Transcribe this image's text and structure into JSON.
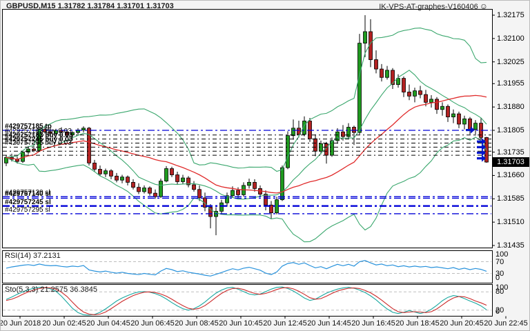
{
  "window": {
    "title": "GBPUSD,M15  1.31782 1.31784 1.31701 1.31703",
    "watermark": "IK-VPS-AT-graphes-V160406",
    "watermark_smiley": "☺"
  },
  "colors": {
    "background": "#f4f4f4",
    "pane_bg": "#ffffff",
    "border": "#000000",
    "bull": "#1f9a1f",
    "bear": "#b22222",
    "wick": "#000000",
    "band": "#3aa76d",
    "ma_fast": "#3aa76d",
    "ma_slow": "#e02a2a",
    "buy_line": "#000000",
    "stop_line": "#0000d8",
    "rsi_line": "#2892dc",
    "sto_main": "#18a8a0",
    "sto_signal": "#cc2a2a",
    "guide_dash": "#bdbdbd",
    "current_tag_bg": "#000000",
    "current_tag_fg": "#ffffff"
  },
  "price_axis": {
    "labels": [
      "1.32175",
      "1.32100",
      "1.32025",
      "1.31955",
      "1.31880",
      "1.31805",
      "1.31735",
      "1.31660",
      "1.31585",
      "1.31510",
      "1.31435"
    ],
    "current": "1.31703"
  },
  "time_axis": {
    "labels": [
      "20 Jun 2018",
      "20 Jun 02:45",
      "20 Jun 04:45",
      "20 Jun 06:45",
      "20 Jun 08:45",
      "20 Jun 10:45",
      "20 Jun 12:45",
      "20 Jun 14:45",
      "20 Jun 16:45",
      "20 Jun 18:45",
      "20 Jun 20:45",
      "20 Jun 22:45"
    ]
  },
  "order_lines": [
    {
      "label": "#429757185 tp",
      "price": 1.31805,
      "type": "tp",
      "width": 1.3,
      "bold": true
    },
    {
      "label": "#429757163 buy 0.03",
      "price": 1.3179,
      "type": "buy",
      "width": 1,
      "bold": false
    },
    {
      "label": "#429757183 buy 0.03",
      "price": 1.31777,
      "type": "buy",
      "width": 1,
      "bold": true
    },
    {
      "label": "#429757245 buy 0.03",
      "price": 1.31764,
      "type": "buy",
      "width": 1,
      "bold": true
    },
    {
      "label": "#429757295 buy 0.03",
      "price": 1.31751,
      "type": "buy",
      "width": 1,
      "bold": false
    },
    {
      "label": "",
      "price": 1.31738,
      "type": "buy",
      "width": 1,
      "bold": false
    },
    {
      "label": "",
      "price": 1.31725,
      "type": "buy",
      "width": 1,
      "bold": false
    },
    {
      "label": "#429757120 sl",
      "price": 1.31592,
      "type": "sl",
      "width": 1.4,
      "bold": false
    },
    {
      "label": "#429757140 sl",
      "price": 1.31587,
      "type": "sl",
      "width": 1.4,
      "bold": true
    },
    {
      "label": "#429757245 sl",
      "price": 1.31562,
      "type": "sl",
      "width": 2.4,
      "bold": true
    },
    {
      "label": "#429757295 sl",
      "price": 1.31537,
      "type": "sl",
      "width": 1.4,
      "bold": false
    }
  ],
  "trade_arrows": [
    {
      "x": 682,
      "price": 1.31806
    },
    {
      "x": 698,
      "price": 1.31769
    },
    {
      "x": 698,
      "price": 1.31751
    },
    {
      "x": 698,
      "price": 1.31733
    },
    {
      "x": 698,
      "price": 1.31715
    }
  ],
  "rsi": {
    "label": "RSI(14) 37.2131",
    "value": 37.2131,
    "levels": [
      100,
      70,
      30,
      0
    ],
    "guides": [
      70,
      30
    ],
    "values": [
      48,
      52,
      55,
      58,
      60,
      57,
      62,
      58,
      56,
      57,
      54,
      52,
      55,
      53,
      57,
      42,
      38,
      35,
      38,
      34,
      31,
      34,
      30,
      28,
      26,
      30,
      27,
      25,
      38,
      47,
      43,
      36,
      39,
      34,
      31,
      28,
      24,
      21,
      27,
      33,
      40,
      46,
      42,
      48,
      51,
      46,
      41,
      31,
      26,
      35,
      55,
      64,
      67,
      61,
      66,
      57,
      49,
      53,
      46,
      54,
      61,
      56,
      61,
      55,
      70,
      74,
      66,
      59,
      62,
      56,
      59,
      53,
      56,
      52,
      55,
      52,
      54,
      50,
      52,
      49,
      46,
      50,
      44,
      48,
      43,
      47,
      44,
      37.2131
    ]
  },
  "stochastic": {
    "label": "Sto(5,3,3) 21.2575 36.3845",
    "main_value": 21.2575,
    "signal_value": 36.3845,
    "levels": [
      100,
      80,
      20,
      0
    ],
    "guides": [
      80,
      20
    ],
    "main": [
      55,
      63,
      72,
      80,
      87,
      92,
      95,
      94,
      90,
      82,
      66,
      46,
      26,
      12,
      5,
      3,
      6,
      13,
      24,
      37,
      50,
      60,
      68,
      75,
      80,
      81,
      79,
      74,
      67,
      57,
      45,
      34,
      25,
      20,
      25,
      34,
      47,
      62,
      76,
      86,
      93,
      95,
      89,
      81,
      73,
      70,
      73,
      81,
      89,
      95,
      96,
      91,
      83,
      72,
      60,
      52,
      56,
      66,
      76,
      83,
      89,
      93,
      95,
      92,
      86,
      78,
      67,
      54,
      38,
      24,
      13,
      9,
      13,
      19,
      14,
      9,
      14,
      23,
      36,
      51,
      62,
      68,
      65,
      58,
      50,
      43,
      34,
      21.2575
    ],
    "signal": [
      52,
      56,
      63,
      72,
      80,
      86,
      91,
      94,
      93,
      89,
      79,
      65,
      46,
      28,
      14,
      7,
      5,
      7,
      14,
      25,
      37,
      49,
      59,
      68,
      74,
      79,
      80,
      78,
      73,
      66,
      56,
      45,
      35,
      26,
      23,
      26,
      35,
      48,
      62,
      75,
      85,
      91,
      92,
      88,
      81,
      75,
      72,
      75,
      81,
      88,
      93,
      94,
      90,
      82,
      72,
      61,
      56,
      58,
      66,
      75,
      83,
      88,
      92,
      93,
      91,
      85,
      77,
      66,
      53,
      39,
      25,
      15,
      12,
      14,
      15,
      14,
      12,
      15,
      24,
      37,
      50,
      60,
      65,
      64,
      58,
      50,
      44,
      36.3845
    ]
  },
  "chart_data": {
    "type": "candlestick",
    "title": "GBPUSD,M15",
    "ohlc_display": [
      "1.31782",
      "1.31784",
      "1.31701",
      "1.31703"
    ],
    "y_range": [
      1.31435,
      1.32175
    ],
    "indicators": {
      "bollinger_period": 20,
      "bollinger_deviation": 2,
      "ma_fast_period": 10,
      "ma_slow_period": 24
    },
    "candles": [
      [
        1.317,
        1.31725,
        1.3169,
        1.31718
      ],
      [
        1.31718,
        1.3173,
        1.31705,
        1.31712
      ],
      [
        1.31712,
        1.3172,
        1.31698,
        1.31705
      ],
      [
        1.31705,
        1.3174,
        1.317,
        1.31735
      ],
      [
        1.31735,
        1.31752,
        1.31728,
        1.31745
      ],
      [
        1.31745,
        1.31755,
        1.31735,
        1.3174
      ],
      [
        1.3174,
        1.31815,
        1.31738,
        1.31808
      ],
      [
        1.31808,
        1.3182,
        1.31795,
        1.318
      ],
      [
        1.318,
        1.31812,
        1.31788,
        1.31795
      ],
      [
        1.31795,
        1.3181,
        1.3179,
        1.31805
      ],
      [
        1.31805,
        1.31815,
        1.31796,
        1.318
      ],
      [
        1.318,
        1.31808,
        1.31785,
        1.3179
      ],
      [
        1.3179,
        1.31802,
        1.31782,
        1.31798
      ],
      [
        1.31798,
        1.31812,
        1.3179,
        1.31806
      ],
      [
        1.31806,
        1.31818,
        1.31798,
        1.31812
      ],
      [
        1.31812,
        1.31816,
        1.31692,
        1.317
      ],
      [
        1.317,
        1.3171,
        1.31672,
        1.3168
      ],
      [
        1.3168,
        1.31692,
        1.31658,
        1.31665
      ],
      [
        1.31665,
        1.31682,
        1.31655,
        1.31675
      ],
      [
        1.31675,
        1.3168,
        1.31648,
        1.31658
      ],
      [
        1.31658,
        1.31668,
        1.31638,
        1.31645
      ],
      [
        1.31645,
        1.31662,
        1.31635,
        1.31655
      ],
      [
        1.31655,
        1.3166,
        1.31628,
        1.31638
      ],
      [
        1.31638,
        1.31648,
        1.31615,
        1.31622
      ],
      [
        1.31622,
        1.31635,
        1.316,
        1.31608
      ],
      [
        1.31608,
        1.31628,
        1.31602,
        1.3162
      ],
      [
        1.3162,
        1.31625,
        1.31595,
        1.31603
      ],
      [
        1.31603,
        1.31615,
        1.31585,
        1.31592
      ],
      [
        1.31592,
        1.3165,
        1.31588,
        1.31642
      ],
      [
        1.31642,
        1.3169,
        1.31638,
        1.31682
      ],
      [
        1.31682,
        1.31688,
        1.31655,
        1.31662
      ],
      [
        1.31662,
        1.31672,
        1.3163,
        1.3164
      ],
      [
        1.3164,
        1.31662,
        1.31632,
        1.31652
      ],
      [
        1.31652,
        1.31658,
        1.31622,
        1.3163
      ],
      [
        1.3163,
        1.31642,
        1.31608,
        1.31615
      ],
      [
        1.31615,
        1.31628,
        1.31578,
        1.31588
      ],
      [
        1.31588,
        1.31605,
        1.31545,
        1.31558
      ],
      [
        1.31558,
        1.31568,
        1.3149,
        1.31528
      ],
      [
        1.31528,
        1.31558,
        1.31468,
        1.31545
      ],
      [
        1.31545,
        1.31582,
        1.31538,
        1.31572
      ],
      [
        1.31572,
        1.31605,
        1.3156,
        1.31595
      ],
      [
        1.31595,
        1.31625,
        1.31588,
        1.31612
      ],
      [
        1.31612,
        1.31622,
        1.31588,
        1.31598
      ],
      [
        1.31598,
        1.31638,
        1.31592,
        1.31628
      ],
      [
        1.31628,
        1.3165,
        1.31618,
        1.31638
      ],
      [
        1.31638,
        1.31648,
        1.31608,
        1.31618
      ],
      [
        1.31618,
        1.31628,
        1.3159,
        1.316
      ],
      [
        1.316,
        1.31612,
        1.31548,
        1.31565
      ],
      [
        1.31565,
        1.31578,
        1.3152,
        1.3154
      ],
      [
        1.3154,
        1.31592,
        1.31535,
        1.31582
      ],
      [
        1.31582,
        1.31692,
        1.31578,
        1.31685
      ],
      [
        1.31685,
        1.31802,
        1.3168,
        1.31788
      ],
      [
        1.31788,
        1.3184,
        1.31775,
        1.31812
      ],
      [
        1.31812,
        1.31836,
        1.31782,
        1.31792
      ],
      [
        1.31792,
        1.3185,
        1.31786,
        1.31835
      ],
      [
        1.31835,
        1.31845,
        1.31768,
        1.31778
      ],
      [
        1.31778,
        1.31792,
        1.31722,
        1.31738
      ],
      [
        1.31738,
        1.31772,
        1.31728,
        1.31762
      ],
      [
        1.31762,
        1.31768,
        1.31698,
        1.31725
      ],
      [
        1.31725,
        1.31782,
        1.3172,
        1.31772
      ],
      [
        1.31772,
        1.31812,
        1.31762,
        1.318
      ],
      [
        1.318,
        1.31822,
        1.31772,
        1.31785
      ],
      [
        1.31785,
        1.31828,
        1.31778,
        1.31815
      ],
      [
        1.31815,
        1.3182,
        1.31758,
        1.31798
      ],
      [
        1.31798,
        1.32115,
        1.31792,
        1.32085
      ],
      [
        1.32085,
        1.32175,
        1.3204,
        1.32122
      ],
      [
        1.32122,
        1.32162,
        1.32008,
        1.32032
      ],
      [
        1.32032,
        1.32062,
        1.31988,
        1.32002
      ],
      [
        1.32002,
        1.32018,
        1.31962,
        1.31975
      ],
      [
        1.31975,
        1.32012,
        1.31968,
        1.31998
      ],
      [
        1.31998,
        1.32005,
        1.31938,
        1.31952
      ],
      [
        1.31952,
        1.31985,
        1.31942,
        1.31972
      ],
      [
        1.31972,
        1.31978,
        1.31912,
        1.31928
      ],
      [
        1.31928,
        1.31952,
        1.31902,
        1.31915
      ],
      [
        1.31915,
        1.31942,
        1.31895,
        1.31932
      ],
      [
        1.31932,
        1.31948,
        1.31908,
        1.3192
      ],
      [
        1.3192,
        1.31935,
        1.31882,
        1.31895
      ],
      [
        1.31895,
        1.31918,
        1.31878,
        1.31905
      ],
      [
        1.31905,
        1.31912,
        1.31858,
        1.31872
      ],
      [
        1.31872,
        1.31895,
        1.31852,
        1.31882
      ],
      [
        1.31882,
        1.31888,
        1.31832,
        1.31848
      ],
      [
        1.31848,
        1.31872,
        1.31828,
        1.31858
      ],
      [
        1.31858,
        1.31865,
        1.31812,
        1.31825
      ],
      [
        1.31825,
        1.31852,
        1.31808,
        1.31842
      ],
      [
        1.31842,
        1.31848,
        1.31792,
        1.31808
      ],
      [
        1.31808,
        1.31838,
        1.31788,
        1.31828
      ],
      [
        1.31828,
        1.31845,
        1.31775,
        1.31782
      ],
      [
        1.31782,
        1.31784,
        1.31701,
        1.31703
      ]
    ]
  }
}
